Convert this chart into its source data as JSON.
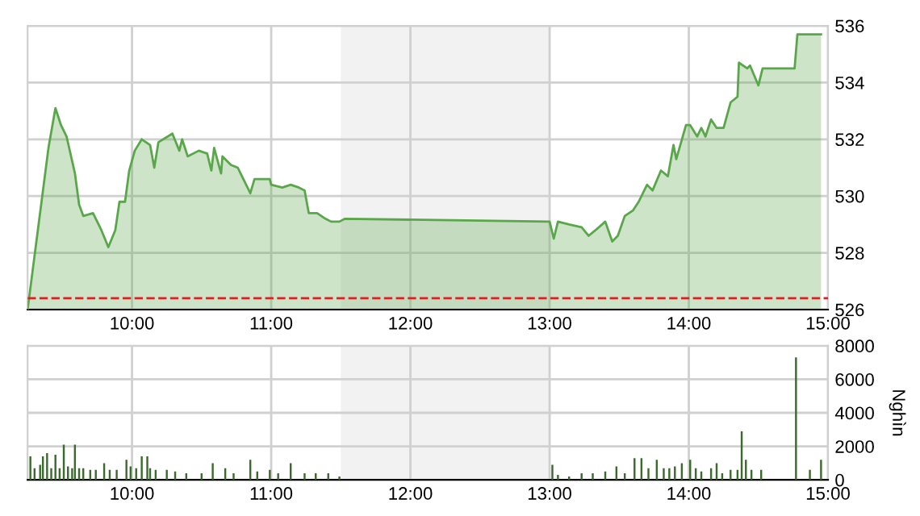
{
  "chart_data": [
    {
      "type": "area",
      "x": [
        9.25,
        9.4,
        9.45,
        9.49,
        9.53,
        9.59,
        9.62,
        9.65,
        9.72,
        9.78,
        9.83,
        9.88,
        9.91,
        9.95,
        9.98,
        10.02,
        10.07,
        10.13,
        10.16,
        10.19,
        10.29,
        10.34,
        10.36,
        10.4,
        10.48,
        10.54,
        10.57,
        10.59,
        10.64,
        10.65,
        10.71,
        10.76,
        10.79,
        10.85,
        10.88,
        10.99,
        11.0,
        11.08,
        11.14,
        11.2,
        11.24,
        11.27,
        11.33,
        11.39,
        11.43,
        11.49,
        11.53,
        13.0,
        13.03,
        13.06,
        13.14,
        13.23,
        13.28,
        13.33,
        13.4,
        13.45,
        13.49,
        13.54,
        13.6,
        13.64,
        13.7,
        13.74,
        13.8,
        13.85,
        13.89,
        13.91,
        13.98,
        14.01,
        14.06,
        14.09,
        14.12,
        14.16,
        14.2,
        14.25,
        14.3,
        14.35,
        14.36,
        14.42,
        14.44,
        14.5,
        14.53,
        14.76,
        14.78,
        14.95
      ],
      "series": [
        {
          "color": "#5aa64a",
          "values": [
            526.0,
            531.7,
            533.1,
            532.5,
            532.1,
            530.8,
            529.7,
            529.3,
            529.4,
            528.8,
            528.2,
            528.8,
            529.8,
            529.8,
            530.9,
            531.6,
            532.0,
            531.8,
            531.0,
            531.9,
            532.2,
            531.6,
            532.0,
            531.4,
            531.6,
            531.5,
            530.9,
            531.7,
            530.8,
            531.4,
            531.1,
            531.0,
            530.7,
            530.1,
            530.6,
            530.6,
            530.4,
            530.3,
            530.4,
            530.3,
            530.2,
            529.4,
            529.4,
            529.2,
            529.1,
            529.1,
            529.2,
            529.1,
            528.5,
            529.1,
            529.0,
            528.9,
            528.6,
            528.8,
            529.1,
            528.4,
            528.6,
            529.3,
            529.5,
            529.8,
            530.4,
            530.2,
            530.9,
            530.7,
            531.8,
            531.3,
            532.5,
            532.5,
            532.1,
            532.4,
            532.1,
            532.7,
            532.4,
            532.4,
            533.3,
            533.5,
            534.7,
            534.5,
            534.6,
            533.9,
            534.5,
            534.5,
            535.7,
            535.7
          ]
        }
      ],
      "xlim": [
        9.25,
        15.0
      ],
      "xticks": [
        {
          "value": 10,
          "label": "10:00"
        },
        {
          "value": 11,
          "label": "11:00"
        },
        {
          "value": 12,
          "label": "12:00"
        },
        {
          "value": 13,
          "label": "13:00"
        },
        {
          "value": 14,
          "label": "14:00"
        },
        {
          "value": 15,
          "label": "15:00"
        }
      ],
      "ylim": [
        526,
        536
      ],
      "yticks": [
        526,
        528,
        530,
        532,
        534,
        536
      ],
      "grid": true,
      "bands": [
        {
          "axis": "x",
          "from": 11.5,
          "to": 13.0,
          "color": "#f2f2f2"
        }
      ],
      "ref_lines": [
        {
          "axis": "y",
          "value": 526.4,
          "color": "#e02020",
          "line_style": "dashed"
        }
      ]
    },
    {
      "type": "bar",
      "x": [
        9.27,
        9.3,
        9.34,
        9.36,
        9.39,
        9.42,
        9.45,
        9.48,
        9.51,
        9.54,
        9.57,
        9.59,
        9.62,
        9.65,
        9.7,
        9.74,
        9.8,
        9.84,
        9.89,
        9.96,
        9.99,
        10.03,
        10.07,
        10.11,
        10.13,
        10.17,
        10.25,
        10.31,
        10.39,
        10.5,
        10.58,
        10.67,
        10.73,
        10.85,
        10.9,
        10.99,
        11.05,
        11.14,
        11.24,
        11.32,
        11.41,
        11.49,
        13.02,
        13.06,
        13.14,
        13.23,
        13.31,
        13.4,
        13.48,
        13.54,
        13.61,
        13.66,
        13.71,
        13.77,
        13.82,
        13.86,
        13.9,
        13.95,
        14.01,
        14.05,
        14.09,
        14.16,
        14.2,
        14.24,
        14.3,
        14.35,
        14.38,
        14.41,
        14.45,
        14.52,
        14.77,
        14.87,
        14.95
      ],
      "series": [
        {
          "color": "#3b6b2c",
          "values": [
            1400,
            700,
            900,
            1400,
            1600,
            700,
            1500,
            700,
            2100,
            800,
            700,
            2100,
            700,
            700,
            600,
            600,
            1000,
            600,
            600,
            1200,
            800,
            700,
            1400,
            1400,
            700,
            600,
            600,
            500,
            400,
            400,
            1000,
            700,
            400,
            1200,
            500,
            600,
            400,
            1000,
            400,
            400,
            400,
            200,
            900,
            300,
            200,
            400,
            400,
            500,
            800,
            400,
            1300,
            1300,
            700,
            1200,
            700,
            700,
            800,
            1000,
            1200,
            700,
            500,
            700,
            1000,
            400,
            600,
            600,
            2900,
            1200,
            600,
            600,
            7300,
            600,
            1200
          ]
        }
      ],
      "xlim": [
        9.25,
        15.0
      ],
      "xticks": [
        {
          "value": 10,
          "label": "10:00"
        },
        {
          "value": 11,
          "label": "11:00"
        },
        {
          "value": 12,
          "label": "12:00"
        },
        {
          "value": 13,
          "label": "13:00"
        },
        {
          "value": 14,
          "label": "14:00"
        },
        {
          "value": 15,
          "label": "15:00"
        }
      ],
      "ylim": [
        0,
        8000
      ],
      "yticks": [
        0,
        2000,
        4000,
        6000,
        8000
      ],
      "ylabel": "Nghìn",
      "grid": true,
      "bands": [
        {
          "axis": "x",
          "from": 11.5,
          "to": 13.0,
          "color": "#f2f2f2"
        }
      ]
    }
  ]
}
